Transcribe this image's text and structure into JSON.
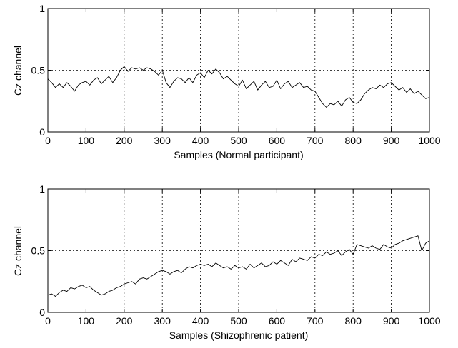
{
  "chart_data": [
    {
      "type": "line",
      "xlabel": "Samples (Normal participant)",
      "ylabel": "Cz channel",
      "xlim": [
        0,
        1000
      ],
      "ylim": [
        0,
        1
      ],
      "xticks": [
        0,
        100,
        200,
        300,
        400,
        500,
        600,
        700,
        800,
        900,
        1000
      ],
      "yticks": [
        0,
        0.5,
        1
      ],
      "xtick_labels": [
        "0",
        "100",
        "200",
        "300",
        "400",
        "500",
        "600",
        "700",
        "800",
        "900",
        "1000"
      ],
      "ytick_labels": [
        "0",
        "0.5",
        "1"
      ],
      "grid": true,
      "series": [
        {
          "color": "#000000",
          "x": [
            0,
            10,
            20,
            30,
            40,
            50,
            60,
            70,
            80,
            90,
            100,
            110,
            120,
            130,
            140,
            150,
            160,
            170,
            180,
            190,
            200,
            210,
            220,
            230,
            240,
            250,
            260,
            270,
            280,
            290,
            300,
            310,
            320,
            330,
            340,
            350,
            360,
            370,
            380,
            390,
            400,
            410,
            420,
            430,
            440,
            450,
            460,
            470,
            480,
            490,
            500,
            510,
            520,
            530,
            540,
            550,
            560,
            570,
            580,
            590,
            600,
            610,
            620,
            630,
            640,
            650,
            660,
            670,
            680,
            690,
            700,
            710,
            720,
            730,
            740,
            750,
            760,
            770,
            780,
            790,
            800,
            810,
            820,
            830,
            840,
            850,
            860,
            870,
            880,
            890,
            900,
            910,
            920,
            930,
            940,
            950,
            960,
            970,
            980,
            990,
            1000
          ],
          "values": [
            0.43,
            0.4,
            0.36,
            0.39,
            0.36,
            0.4,
            0.37,
            0.33,
            0.38,
            0.4,
            0.41,
            0.38,
            0.42,
            0.44,
            0.39,
            0.42,
            0.45,
            0.4,
            0.44,
            0.5,
            0.53,
            0.49,
            0.52,
            0.51,
            0.52,
            0.5,
            0.52,
            0.51,
            0.49,
            0.46,
            0.5,
            0.4,
            0.36,
            0.41,
            0.44,
            0.43,
            0.4,
            0.44,
            0.4,
            0.46,
            0.48,
            0.44,
            0.5,
            0.47,
            0.51,
            0.48,
            0.43,
            0.45,
            0.42,
            0.39,
            0.37,
            0.42,
            0.35,
            0.38,
            0.41,
            0.34,
            0.38,
            0.41,
            0.36,
            0.37,
            0.42,
            0.35,
            0.39,
            0.41,
            0.36,
            0.38,
            0.4,
            0.36,
            0.37,
            0.34,
            0.33,
            0.28,
            0.23,
            0.2,
            0.23,
            0.22,
            0.25,
            0.21,
            0.26,
            0.28,
            0.24,
            0.23,
            0.26,
            0.31,
            0.34,
            0.36,
            0.35,
            0.38,
            0.36,
            0.39,
            0.4,
            0.37,
            0.34,
            0.36,
            0.32,
            0.35,
            0.31,
            0.33,
            0.3,
            0.27,
            0.28
          ]
        }
      ]
    },
    {
      "type": "line",
      "xlabel": "Samples (Shizophrenic patient)",
      "ylabel": "Cz channel",
      "xlim": [
        0,
        1000
      ],
      "ylim": [
        0,
        1
      ],
      "xticks": [
        0,
        100,
        200,
        300,
        400,
        500,
        600,
        700,
        800,
        900,
        1000
      ],
      "yticks": [
        0,
        0.5,
        1
      ],
      "xtick_labels": [
        "0",
        "100",
        "200",
        "300",
        "400",
        "500",
        "600",
        "700",
        "800",
        "900",
        "1000"
      ],
      "ytick_labels": [
        "0",
        "0.5",
        "1"
      ],
      "grid": true,
      "series": [
        {
          "color": "#000000",
          "x": [
            0,
            10,
            20,
            30,
            40,
            50,
            60,
            70,
            80,
            90,
            100,
            110,
            120,
            130,
            140,
            150,
            160,
            170,
            180,
            190,
            200,
            210,
            220,
            230,
            240,
            250,
            260,
            270,
            280,
            290,
            300,
            310,
            320,
            330,
            340,
            350,
            360,
            370,
            380,
            390,
            400,
            410,
            420,
            430,
            440,
            450,
            460,
            470,
            480,
            490,
            500,
            510,
            520,
            530,
            540,
            550,
            560,
            570,
            580,
            590,
            600,
            610,
            620,
            630,
            640,
            650,
            660,
            670,
            680,
            690,
            700,
            710,
            720,
            730,
            740,
            750,
            760,
            770,
            780,
            790,
            800,
            810,
            820,
            830,
            840,
            850,
            860,
            870,
            880,
            890,
            900,
            910,
            920,
            930,
            940,
            950,
            960,
            970,
            980,
            990,
            1000
          ],
          "values": [
            0.14,
            0.15,
            0.13,
            0.16,
            0.18,
            0.17,
            0.2,
            0.19,
            0.21,
            0.22,
            0.2,
            0.21,
            0.18,
            0.16,
            0.14,
            0.15,
            0.17,
            0.18,
            0.2,
            0.21,
            0.23,
            0.24,
            0.25,
            0.23,
            0.27,
            0.28,
            0.27,
            0.29,
            0.31,
            0.33,
            0.34,
            0.33,
            0.31,
            0.33,
            0.34,
            0.32,
            0.35,
            0.37,
            0.36,
            0.38,
            0.39,
            0.38,
            0.39,
            0.37,
            0.4,
            0.38,
            0.36,
            0.37,
            0.35,
            0.38,
            0.36,
            0.37,
            0.35,
            0.39,
            0.36,
            0.38,
            0.4,
            0.37,
            0.38,
            0.41,
            0.39,
            0.42,
            0.4,
            0.38,
            0.43,
            0.41,
            0.44,
            0.43,
            0.42,
            0.45,
            0.44,
            0.47,
            0.46,
            0.49,
            0.47,
            0.48,
            0.5,
            0.46,
            0.49,
            0.51,
            0.47,
            0.55,
            0.54,
            0.53,
            0.52,
            0.54,
            0.52,
            0.51,
            0.55,
            0.53,
            0.52,
            0.55,
            0.56,
            0.58,
            0.59,
            0.6,
            0.61,
            0.62,
            0.5,
            0.56,
            0.58
          ]
        }
      ]
    }
  ]
}
